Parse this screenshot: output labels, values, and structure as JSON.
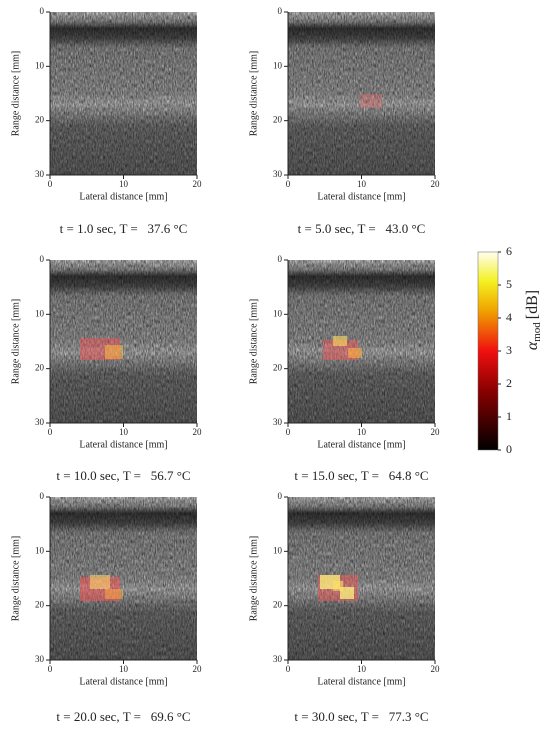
{
  "figure": {
    "axes": {
      "xlabel": "Lateral distance [mm]",
      "ylabel": "Range distance [mm]",
      "xlim": [
        0,
        20
      ],
      "ylim": [
        0,
        30
      ],
      "xticks": [
        0,
        10,
        20
      ],
      "yticks": [
        0,
        10,
        20,
        30
      ]
    },
    "panels": [
      {
        "caption": "t = 1.0 sec, T =   37.6 °C"
      },
      {
        "caption": "t = 5.0 sec, T =   43.0 °C"
      },
      {
        "caption": "t = 10.0 sec, T =   56.7 °C"
      },
      {
        "caption": "t = 15.0 sec, T =   64.8 °C"
      },
      {
        "caption": "t = 20.0 sec, T =   69.6 °C"
      },
      {
        "caption": "t = 30.0 sec, T =   77.3 °C"
      }
    ],
    "colorbar": {
      "label": "α",
      "label_subscript": "mod",
      "unit": "[dB]",
      "lim": [
        0,
        6
      ],
      "ticks": [
        0,
        1,
        2,
        3,
        4,
        5,
        6
      ]
    }
  }
}
